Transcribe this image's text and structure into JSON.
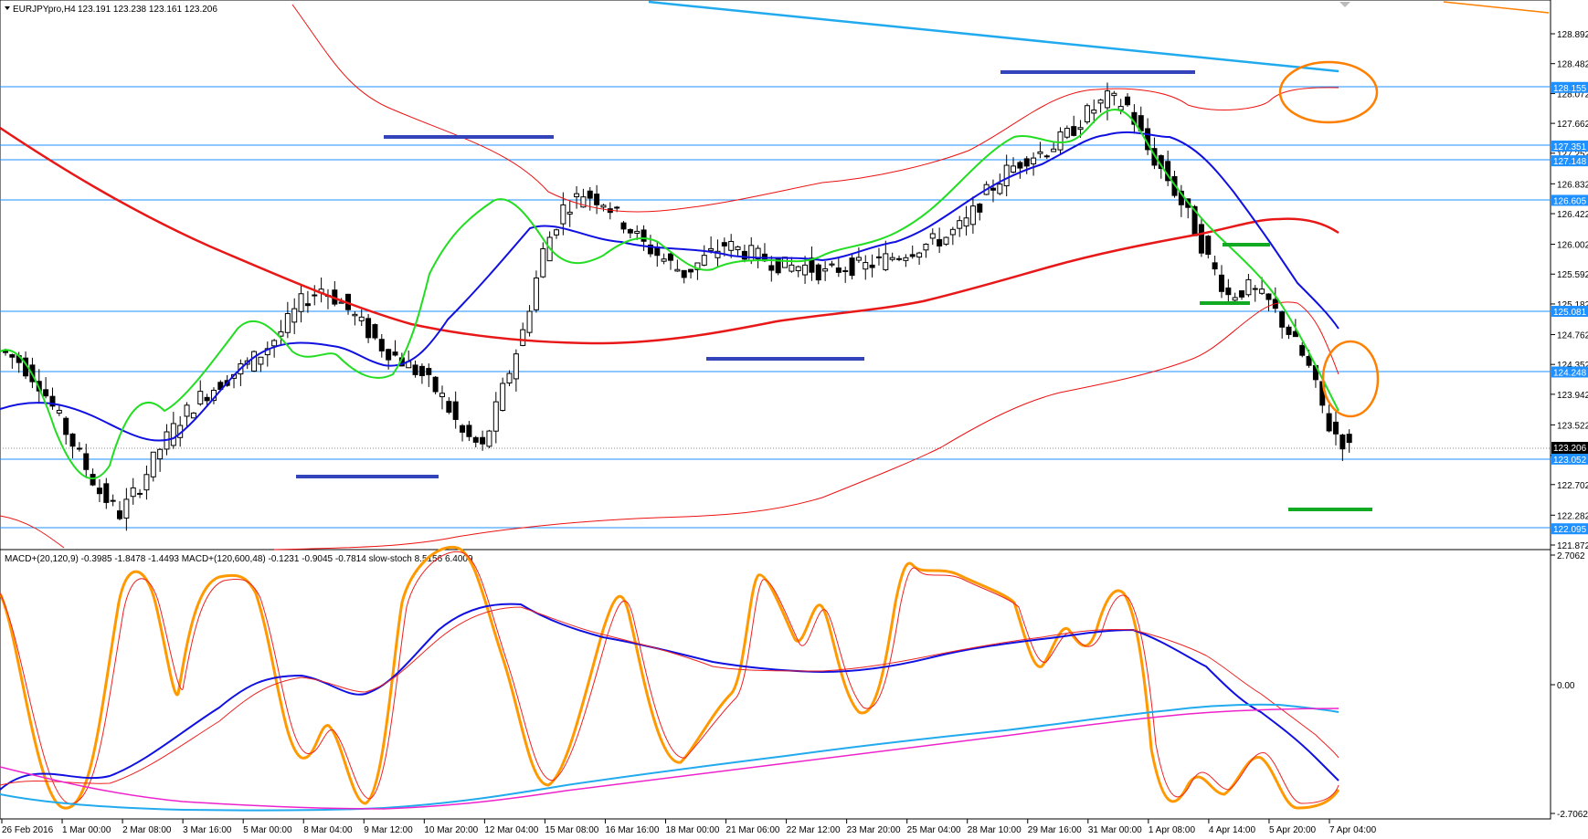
{
  "header": {
    "symbol": "EURJPYpro,H4",
    "ohlc": "123.191 123.238 123.161 123.206"
  },
  "indicator": {
    "legend": "MACD+(20,120,9) -0.3985 -1.8478 -1.4493   MACD+(120,600,48) -0.1231 -0.9045 -0.7814   slow-stoch 8.5156 6.4009"
  },
  "price_axis": {
    "ticks": [
      "128.892",
      "128.482",
      "128.072",
      "127.662",
      "127.252",
      "126.832",
      "126.422",
      "126.002",
      "125.592",
      "125.182",
      "124.762",
      "124.352",
      "123.942",
      "123.522",
      "123.102",
      "122.702",
      "122.282",
      "121.872"
    ]
  },
  "price_levels": [
    {
      "label": "128.155",
      "value": 128.155
    },
    {
      "label": "127.351",
      "value": 127.351
    },
    {
      "label": "127.148",
      "value": 127.148
    },
    {
      "label": "126.605",
      "value": 126.605
    },
    {
      "label": "125.081",
      "value": 125.081
    },
    {
      "label": "124.248",
      "value": 124.248
    },
    {
      "label": "123.052",
      "value": 123.052
    },
    {
      "label": "122.095",
      "value": 122.095
    }
  ],
  "current_price": {
    "label": "123.206",
    "value": 123.206
  },
  "indicator_axis": {
    "top": "2.7062",
    "mid": "0.00",
    "bottom": "-2.7062"
  },
  "time_axis": {
    "labels": [
      "26 Feb 2016",
      "1 Mar 00:00",
      "2 Mar 08:00",
      "3 Mar 16:00",
      "5 Mar 00:00",
      "8 Mar 04:00",
      "9 Mar 12:00",
      "10 Mar 20:00",
      "12 Mar 04:00",
      "15 Mar 08:00",
      "16 Mar 16:00",
      "18 Mar 00:00",
      "21 Mar 06:00",
      "22 Mar 12:00",
      "23 Mar 20:00",
      "25 Mar 04:00",
      "28 Mar 10:00",
      "29 Mar 16:00",
      "31 Mar 00:00",
      "1 Apr 08:00",
      "4 Apr 14:00",
      "5 Apr 20:00",
      "7 Apr 04:00"
    ]
  },
  "colors": {
    "hline": "#1e90ff",
    "badge": "#1e90ff",
    "ma_green": "#22dd22",
    "ma_blue": "#1010e0",
    "ma_red": "#e81818",
    "band": "#ee1111",
    "cyan": "#22aaee",
    "orange": "#ff7f00",
    "magenta": "#ee22cc",
    "marker_blue": "#3344bb",
    "marker_green": "#11aa22"
  },
  "chart_data": {
    "type": "line",
    "series": [
      {
        "values": [
          124.4,
          124.1,
          123.6,
          123.1,
          122.6,
          122.3,
          122.7,
          123.2,
          123.6,
          123.9,
          124.1,
          124.3,
          124.5,
          124.8,
          125.2,
          125.4,
          125.2,
          124.9,
          124.6,
          124.4,
          124.2,
          123.9,
          123.4,
          123.2,
          124.0,
          124.8,
          125.9,
          126.5,
          126.7,
          126.6,
          126.3,
          126.0,
          125.8,
          125.6,
          125.8,
          126.0,
          125.9,
          125.8,
          125.7,
          125.7,
          125.6,
          125.7,
          125.7,
          125.8,
          125.9,
          126.0,
          126.1,
          126.3,
          126.7,
          127.0,
          127.2,
          127.3,
          127.5,
          127.8,
          128.0,
          127.9,
          127.3,
          126.9,
          126.4,
          125.8,
          125.3,
          125.4,
          125.2,
          124.8,
          124.3,
          123.5,
          123.2
        ]
      }
    ]
  }
}
